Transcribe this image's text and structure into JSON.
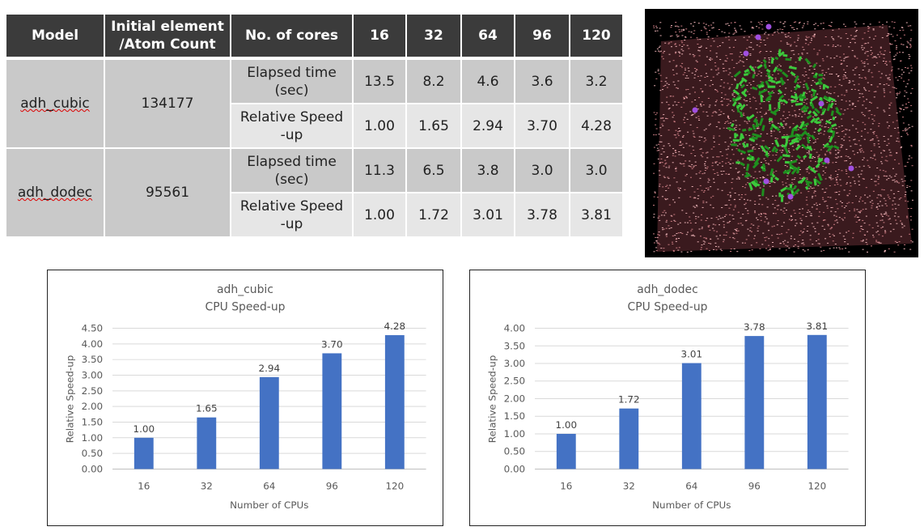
{
  "table": {
    "headers": [
      "Model",
      "Initial element\n/Atom Count",
      "No. of cores",
      "16",
      "32",
      "64",
      "96",
      "120"
    ],
    "header_line1": "Initial element",
    "header_line2": "/Atom Count",
    "rows": [
      {
        "model": "adh_cubic",
        "count": "134177",
        "metrics": [
          {
            "label1": "Elapsed time",
            "label2": "(sec)",
            "values": [
              "13.5",
              "8.2",
              "4.6",
              "3.6",
              "3.2"
            ]
          },
          {
            "label1": "Relative Speed",
            "label2": "-up",
            "values": [
              "1.00",
              "1.65",
              "2.94",
              "3.70",
              "4.28"
            ]
          }
        ]
      },
      {
        "model": "adh_dodec",
        "count": "95561",
        "metrics": [
          {
            "label1": "Elapsed time",
            "label2": "(sec)",
            "values": [
              "11.3",
              "6.5",
              "3.8",
              "3.0",
              "3.0"
            ]
          },
          {
            "label1": "Relative Speed",
            "label2": "-up",
            "values": [
              "1.00",
              "1.72",
              "3.01",
              "3.78",
              "3.81"
            ]
          }
        ]
      }
    ]
  },
  "colors": {
    "bar": "#4472c4",
    "header": "#3b3b3b"
  },
  "chart_data": [
    {
      "type": "bar",
      "title": "adh_cubic",
      "subtitle": "CPU Speed-up",
      "xlabel": "Number of CPUs",
      "ylabel": "Relative Speed-up",
      "categories": [
        "16",
        "32",
        "64",
        "96",
        "120"
      ],
      "values": [
        1.0,
        1.65,
        2.94,
        3.7,
        4.28
      ],
      "ylim": [
        0,
        4.5
      ],
      "ystep": 0.5,
      "yticks": [
        "0.00",
        "0.50",
        "1.00",
        "1.50",
        "2.00",
        "2.50",
        "3.00",
        "3.50",
        "4.00",
        "4.50"
      ],
      "labels": [
        "1.00",
        "1.65",
        "2.94",
        "3.70",
        "4.28"
      ],
      "grid": true
    },
    {
      "type": "bar",
      "title": "adh_dodec",
      "subtitle": "CPU Speed-up",
      "xlabel": "Number of CPUs",
      "ylabel": "Relative Speed-up",
      "categories": [
        "16",
        "32",
        "64",
        "96",
        "120"
      ],
      "values": [
        1.0,
        1.72,
        3.01,
        3.78,
        3.81
      ],
      "ylim": [
        0,
        4.0
      ],
      "ystep": 0.5,
      "yticks": [
        "0.00",
        "0.50",
        "1.00",
        "1.50",
        "2.00",
        "2.50",
        "3.00",
        "3.50",
        "4.00"
      ],
      "labels": [
        "1.00",
        "1.72",
        "3.01",
        "3.78",
        "3.81"
      ],
      "grid": true
    }
  ]
}
